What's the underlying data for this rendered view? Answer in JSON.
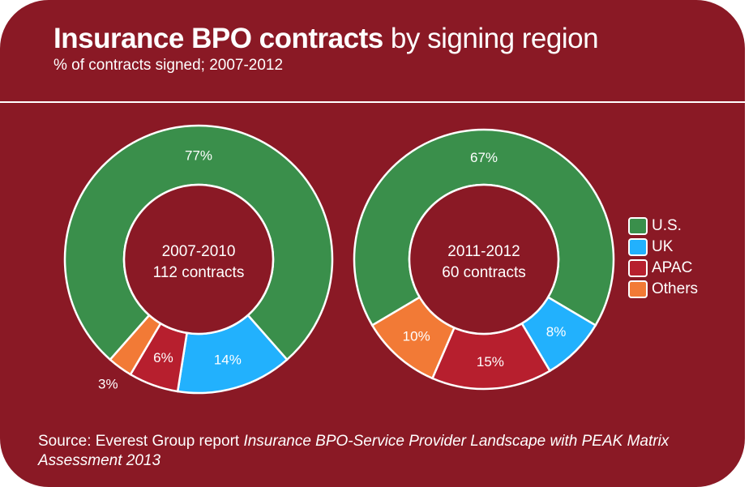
{
  "title_bold": "Insurance BPO contracts",
  "title_rest": " by signing region",
  "subtitle": "% of contracts signed; 2007-2012",
  "source_prefix": "Source: Everest Group report ",
  "source_italic": "Insurance BPO-Service Provider Landscape with PEAK Matrix Assessment 2013",
  "colors": {
    "background": "#8a1925",
    "U.S.": "#3a8f4b",
    "UK": "#22b1fd",
    "APAC": "#b71f2e",
    "Others": "#f27a36"
  },
  "chart_data": [
    {
      "type": "pie",
      "variant": "donut",
      "center_label": [
        "2007-2010",
        "112 contracts"
      ],
      "categories": [
        "U.S.",
        "UK",
        "APAC",
        "Others"
      ],
      "values": [
        77,
        14,
        6,
        3
      ],
      "labels": [
        "77%",
        "14%",
        "6%",
        "3%"
      ]
    },
    {
      "type": "pie",
      "variant": "donut",
      "center_label": [
        "2011-2012",
        "60 contracts"
      ],
      "categories": [
        "U.S.",
        "UK",
        "APAC",
        "Others"
      ],
      "values": [
        67,
        8,
        15,
        10
      ],
      "labels": [
        "67%",
        "8%",
        "15%",
        "10%"
      ]
    }
  ],
  "legend": {
    "placement": "right",
    "items": [
      "U.S.",
      "UK",
      "APAC",
      "Others"
    ]
  }
}
